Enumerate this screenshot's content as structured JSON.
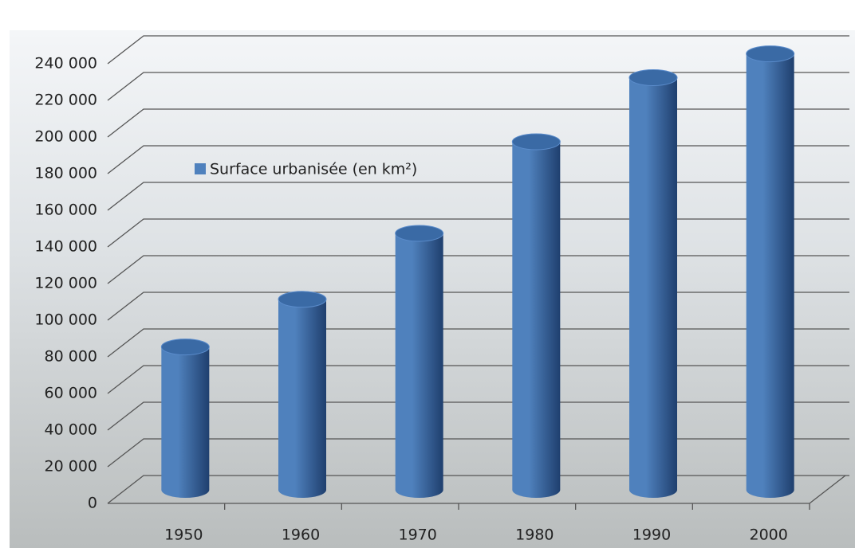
{
  "chart_data": {
    "type": "bar",
    "categories": [
      "1950",
      "1960",
      "1970",
      "1980",
      "1990",
      "2000"
    ],
    "series": [
      {
        "name": "Surface urbanisée (en km²)",
        "color": "#4f81bd",
        "values": [
          78000,
          104000,
          140000,
          190000,
          225000,
          238000
        ]
      }
    ],
    "ylim": [
      0,
      240000
    ],
    "yticks": [
      0,
      {
        "value": 20000,
        "label": "20 000"
      },
      {
        "value": 40000,
        "label": "40 000"
      },
      {
        "value": 60000,
        "label": "60 000"
      },
      {
        "value": 80000,
        "label": "80 000"
      },
      {
        "value": 100000,
        "label": "100 000"
      },
      {
        "value": 120000,
        "label": "120 000"
      },
      {
        "value": 140000,
        "label": "140 000"
      },
      {
        "value": 160000,
        "label": "160 000"
      },
      {
        "value": 180000,
        "label": "180 000"
      },
      {
        "value": 200000,
        "label": "200 000"
      },
      {
        "value": 220000,
        "label": "220 000"
      },
      {
        "value": 240000,
        "label": "240 000"
      }
    ],
    "grid": true
  }
}
